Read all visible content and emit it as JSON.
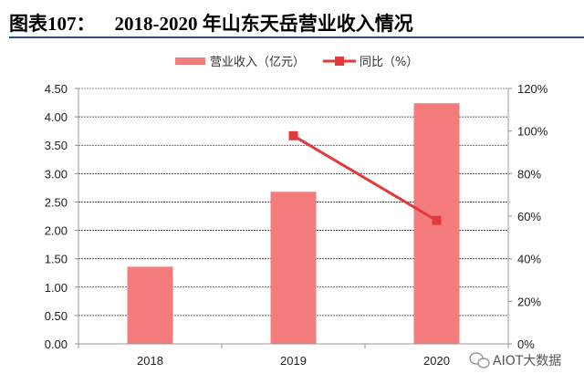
{
  "title": {
    "prefix": "图表107：",
    "text": "2018-2020 年山东天岳营业收入情况"
  },
  "watermark": {
    "icon": "wechat-icon",
    "text": "AIOT大数据"
  },
  "chart_data": {
    "type": "bar+line",
    "categories": [
      "2018",
      "2019",
      "2020"
    ],
    "series": [
      {
        "name": "营业收入（亿元）",
        "type": "bar",
        "axis": "left",
        "color": "#f47c7c",
        "values": [
          1.36,
          2.68,
          4.24
        ]
      },
      {
        "name": "同比（%）",
        "type": "line",
        "axis": "right",
        "color": "#e03a3a",
        "marker": "square",
        "values": [
          null,
          97.8,
          58.0
        ]
      }
    ],
    "y_left": {
      "range": [
        0,
        4.5
      ],
      "ticks": [
        "0.00",
        "0.50",
        "1.00",
        "1.50",
        "2.00",
        "2.50",
        "3.00",
        "3.50",
        "4.00",
        "4.50"
      ]
    },
    "y_right": {
      "range": [
        0,
        120
      ],
      "ticks": [
        "0%",
        "20%",
        "40%",
        "60%",
        "80%",
        "100%",
        "120%"
      ]
    },
    "grid": true,
    "legend": "top-center"
  }
}
